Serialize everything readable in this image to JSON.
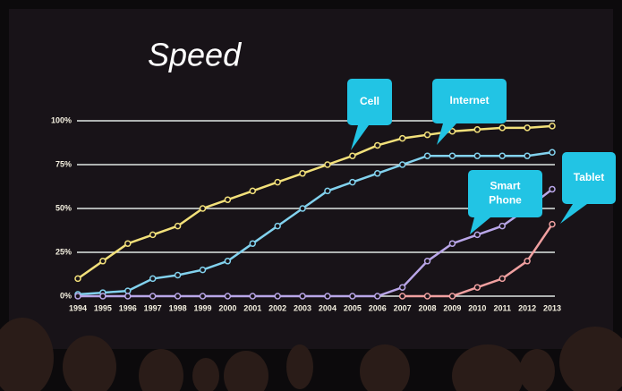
{
  "chart_data": {
    "type": "line",
    "title": "Speed",
    "categories": [
      "1994",
      "1995",
      "1996",
      "1997",
      "1998",
      "1999",
      "2000",
      "2001",
      "2002",
      "2003",
      "2004",
      "2005",
      "2006",
      "2007",
      "2008",
      "2009",
      "2010",
      "2011",
      "2012",
      "2013"
    ],
    "series": [
      {
        "name": "Cell",
        "color": "#f2e07a",
        "values": [
          10,
          20,
          30,
          35,
          40,
          50,
          55,
          60,
          65,
          70,
          75,
          80,
          86,
          90,
          92,
          94,
          95,
          96,
          96,
          97
        ]
      },
      {
        "name": "Internet",
        "color": "#82d2ee",
        "values": [
          1,
          2,
          3,
          10,
          12,
          15,
          20,
          30,
          40,
          50,
          60,
          65,
          70,
          75,
          80,
          80,
          80,
          80,
          80,
          82
        ]
      },
      {
        "name": "Smart Phone",
        "color": "#b9a6e8",
        "values": [
          0,
          0,
          0,
          0,
          0,
          0,
          0,
          0,
          0,
          0,
          0,
          0,
          0,
          5,
          20,
          30,
          35,
          40,
          50,
          61
        ]
      },
      {
        "name": "Tablet",
        "color": "#f0a0a0",
        "values": [
          null,
          null,
          null,
          null,
          null,
          null,
          null,
          null,
          null,
          null,
          null,
          null,
          null,
          0,
          0,
          0,
          5,
          10,
          20,
          41
        ]
      }
    ],
    "ylim": [
      0,
      100
    ],
    "yticks": [
      {
        "value": 0,
        "label": "0%"
      },
      {
        "value": 25,
        "label": "25%"
      },
      {
        "value": 50,
        "label": "50%"
      },
      {
        "value": 75,
        "label": "75%"
      },
      {
        "value": 100,
        "label": "100%"
      }
    ],
    "grid": true
  }
}
